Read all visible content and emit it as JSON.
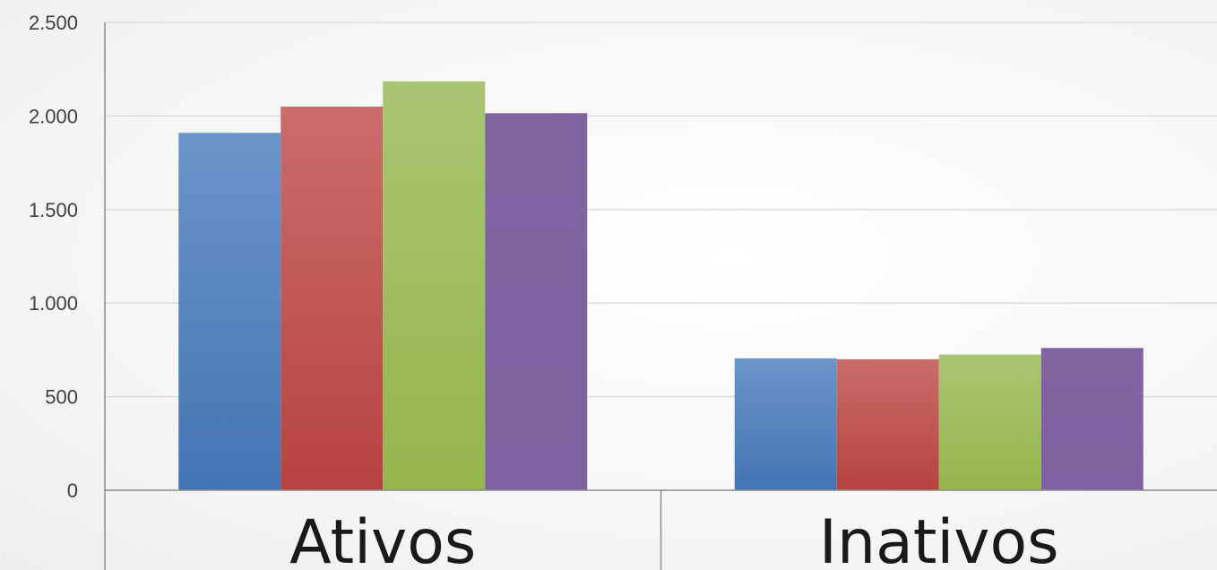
{
  "chart_data": {
    "type": "bar",
    "title": "",
    "xlabel": "",
    "ylabel": "",
    "categories": [
      "Ativos",
      "Inativos"
    ],
    "ylim": [
      0,
      2500
    ],
    "yticks": [
      0,
      500,
      1000,
      1500,
      2000,
      2500
    ],
    "ytick_labels": [
      "0",
      "500",
      "1.000",
      "1.500",
      "2.000",
      "2.500"
    ],
    "grid": true,
    "legend": "none",
    "series": [
      {
        "color": "#4F81BD",
        "values": [
          1910,
          705
        ]
      },
      {
        "color": "#C0504D",
        "values": [
          2050,
          700
        ]
      },
      {
        "color": "#9BBB59",
        "values": [
          2185,
          725
        ]
      },
      {
        "color": "#8064A2",
        "values": [
          2015,
          760
        ]
      }
    ]
  }
}
